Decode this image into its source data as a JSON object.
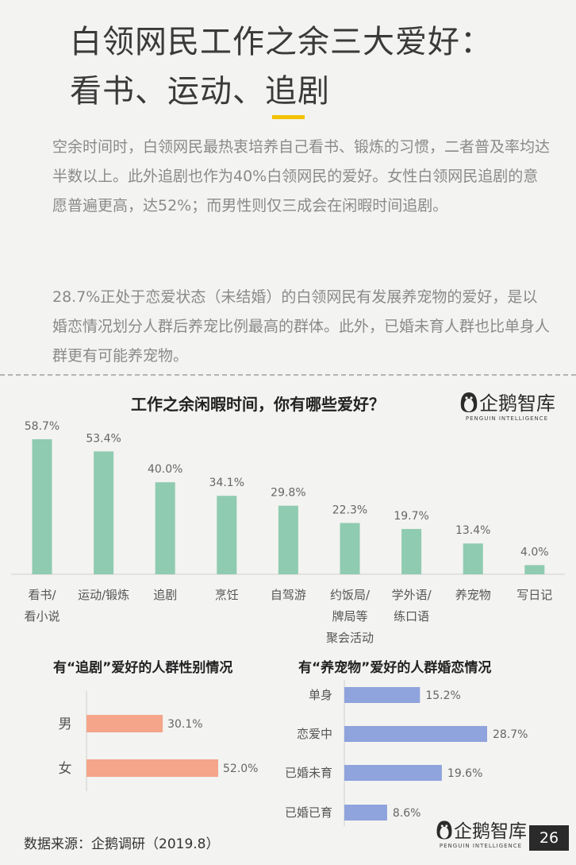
{
  "header": {
    "title_line1": "白领网民工作之余三大爱好：",
    "title_line2": "看书、运动、追剧"
  },
  "paragraphs": [
    "空余时间时，白领网民最热衷培养自己看书、锻炼的习惯，二者普及率均达半数以上。此外追剧也作为40%白领网民的爱好。女性白领网民追剧的意愿普遍更高，达52%；而男性则仅三成会在闲暇时间追剧。",
    "28.7%正处于恋爱状态（未结婚）的白领网民有发展养宠物的爱好，是以婚恋情况划分人群后养宠比例最高的群体。此外，已婚未育人群也比单身人群更有可能养宠物。"
  ],
  "logo": {
    "text": "企鹅智库",
    "subtext": "PENGUIN INTELLIGENCE"
  },
  "colors": {
    "green": "#8fcbb0",
    "salmon": "#f4a58a",
    "blue": "#8fa3dc",
    "accent": "#f2c200"
  },
  "chart_data": [
    {
      "type": "bar",
      "title": "工作之余闲暇时间，你有哪些爱好？",
      "categories": [
        "看书/\n看小说",
        "运动/锻炼",
        "追剧",
        "烹饪",
        "自驾游",
        "约饭局/\n牌局等\n聚会活动",
        "学外语/\n练口语",
        "养宠物",
        "写日记"
      ],
      "values": [
        58.7,
        53.4,
        40.0,
        34.1,
        29.8,
        22.3,
        19.7,
        13.4,
        4.0
      ],
      "value_labels": [
        "58.7%",
        "53.4%",
        "40.0%",
        "34.1%",
        "29.8%",
        "22.3%",
        "19.7%",
        "13.4%",
        "4.0%"
      ],
      "ylim": [
        0,
        60
      ]
    },
    {
      "type": "bar",
      "orientation": "horizontal",
      "title": "有“追剧”爱好的人群性别情况",
      "categories": [
        "男",
        "女"
      ],
      "values": [
        30.1,
        52.0
      ],
      "value_labels": [
        "30.1%",
        "52.0%"
      ],
      "xlim": [
        0,
        60
      ]
    },
    {
      "type": "bar",
      "orientation": "horizontal",
      "title": "有“养宠物”爱好的人群婚恋情况",
      "categories": [
        "单身",
        "恋爱中",
        "已婚未育",
        "已婚已育"
      ],
      "values": [
        15.2,
        28.7,
        19.6,
        8.6
      ],
      "value_labels": [
        "15.2%",
        "28.7%",
        "19.6%",
        "8.6%"
      ],
      "xlim": [
        0,
        30
      ]
    }
  ],
  "footer": {
    "source": "数据来源：企鹅调研（2019.8）",
    "page_number": "26"
  }
}
